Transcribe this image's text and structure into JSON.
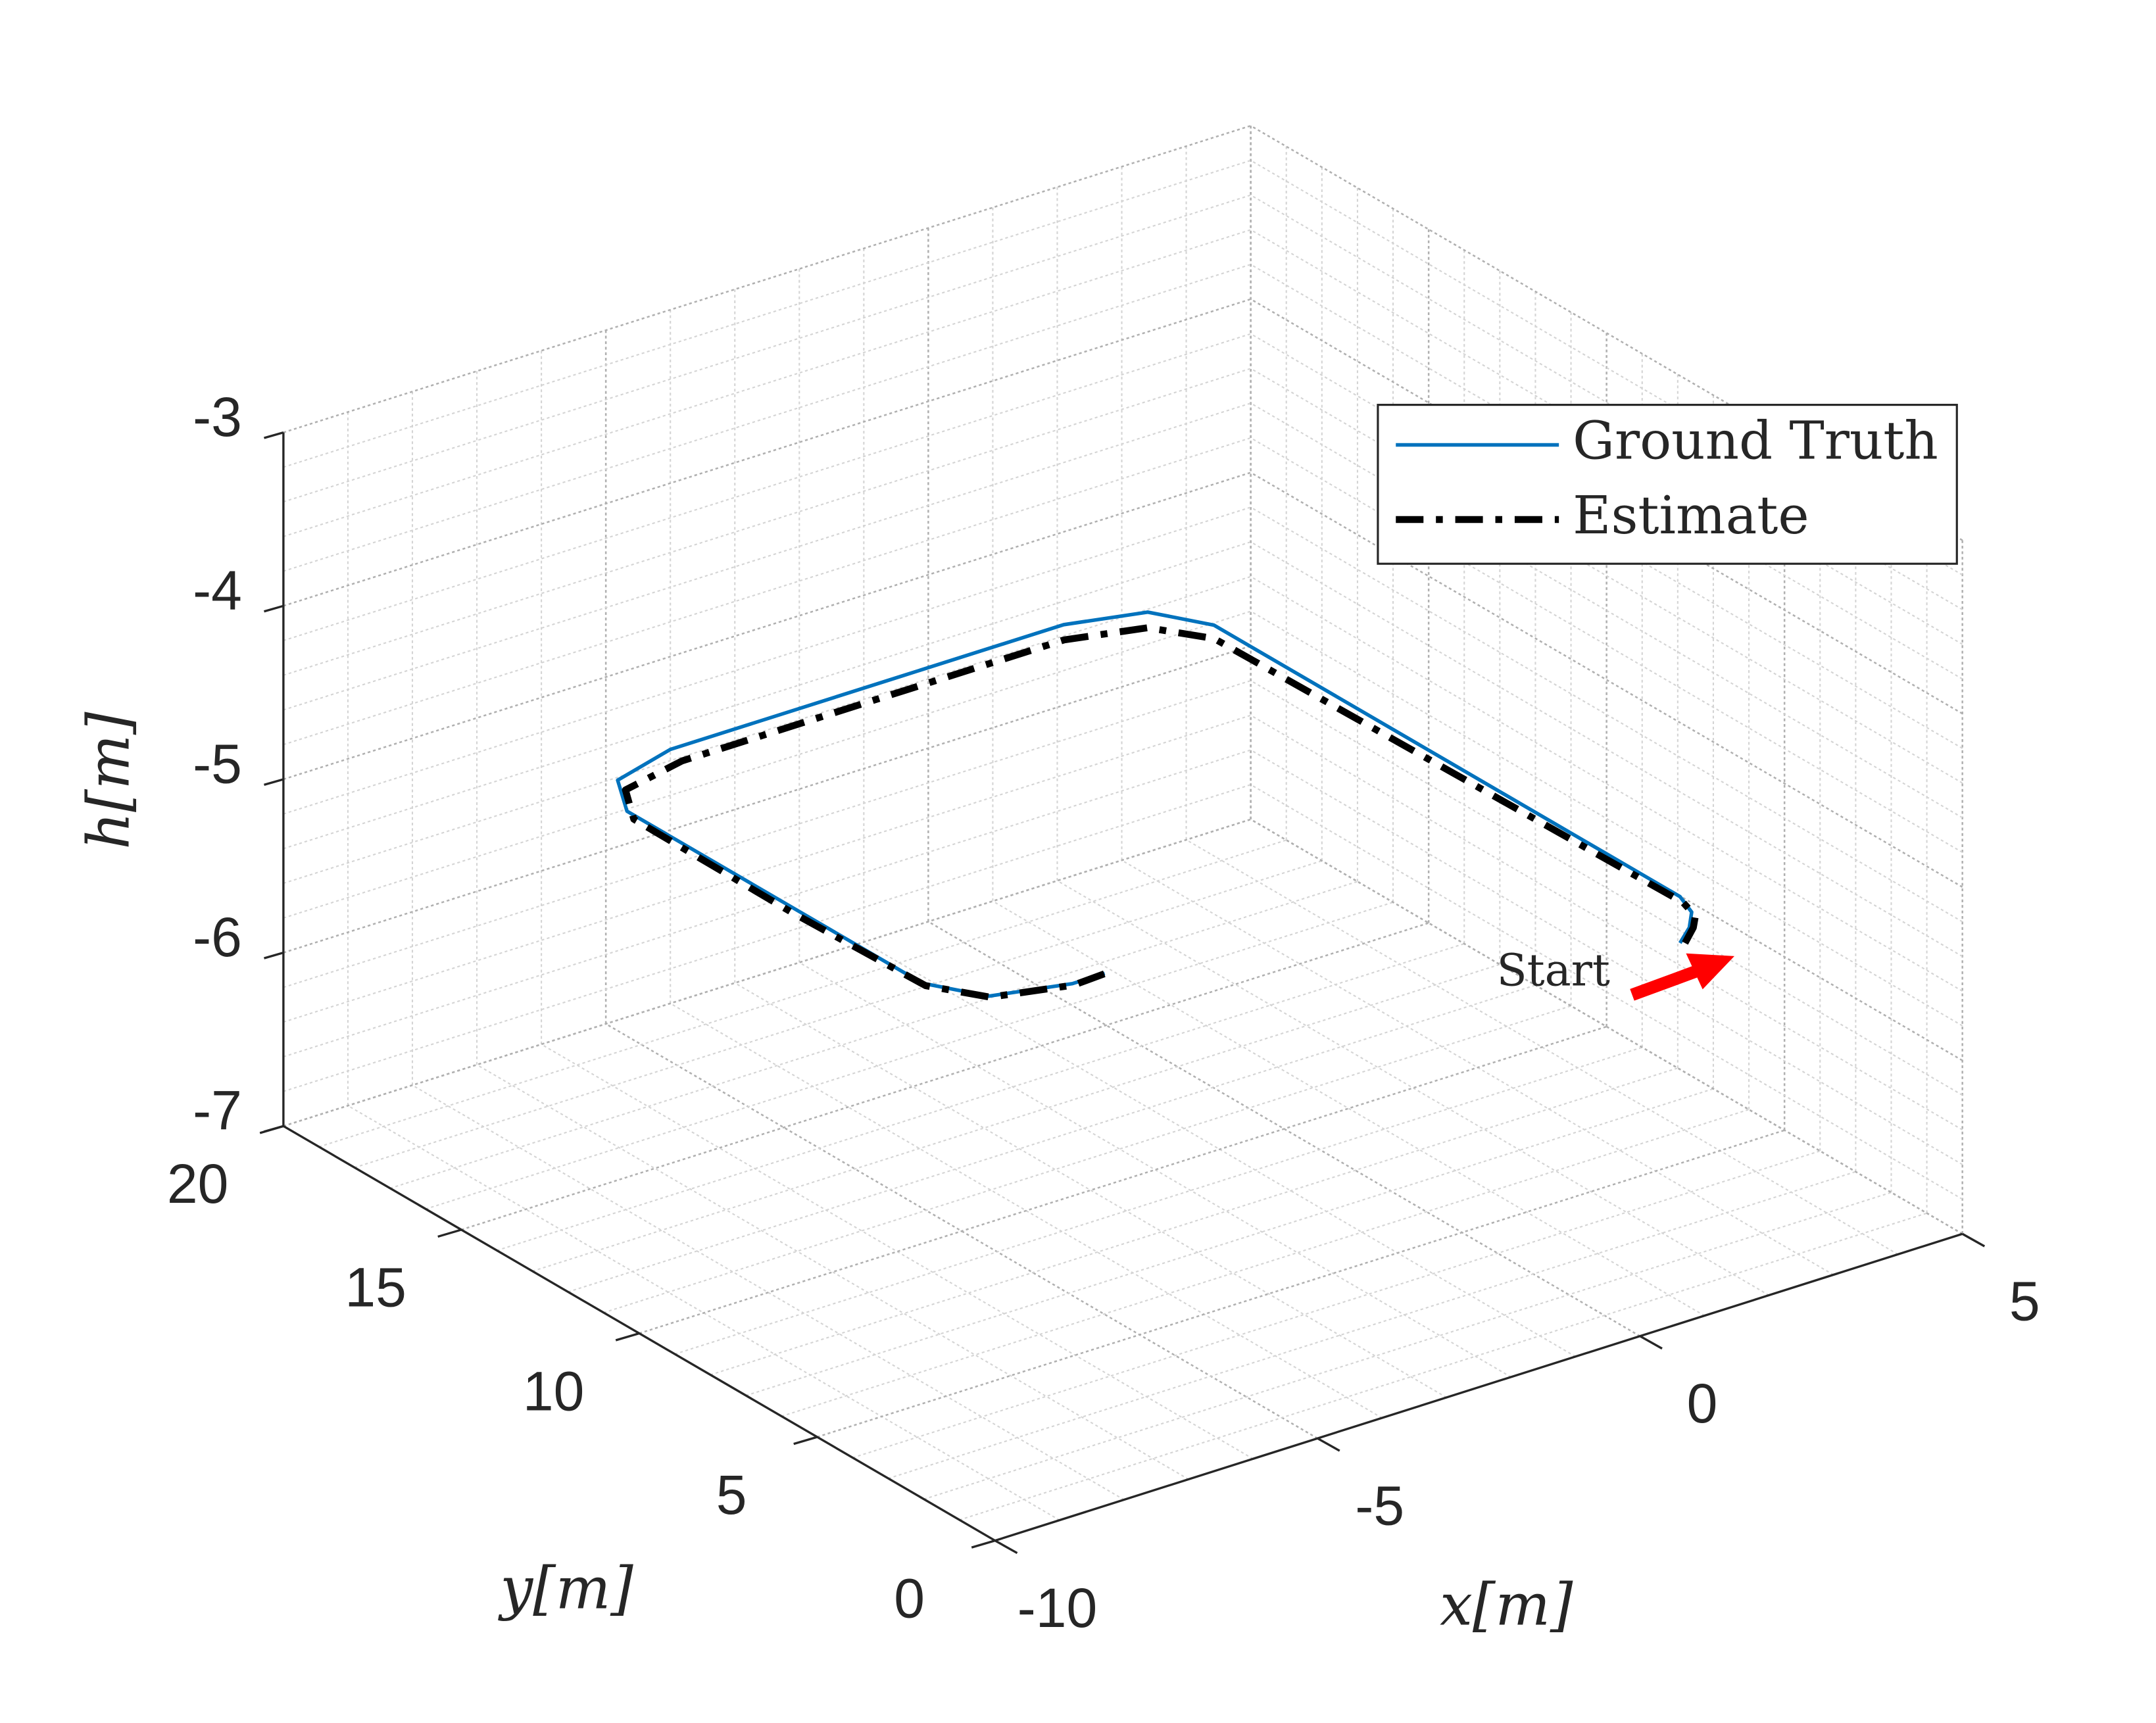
{
  "chart_data": {
    "type": "line3d",
    "xlabel": "x[m]",
    "ylabel": "y[m]",
    "zlabel": "h[m]",
    "xlim": [
      -10,
      5
    ],
    "xticks": [
      -10,
      -5,
      0,
      5
    ],
    "ylim": [
      0,
      20
    ],
    "yticks": [
      0,
      5,
      10,
      15,
      20
    ],
    "zlim": [
      -7,
      -3
    ],
    "zticks": [
      -7,
      -6,
      -5,
      -4,
      -3
    ],
    "grid": true,
    "minor_grid": true,
    "legend": "upper right",
    "annotation": "Start",
    "series": [
      {
        "name": "Ground Truth",
        "color": "#0072bd",
        "line_style": "solid",
        "x": [
          1.2,
          1.56,
          1.85,
          2.0,
          2.0,
          2.0,
          1.56,
          0.5,
          -2.0,
          -5.6,
          -6.66,
          -7.1,
          -7.1,
          -7.1,
          -6.66,
          -5.6,
          -5.1
        ],
        "y": [
          1.05,
          1.44,
          1.9,
          2.5,
          9.0,
          15.6,
          16.66,
          17.1,
          17.1,
          17.1,
          16.66,
          15.6,
          11.0,
          7.3,
          6.24,
          5.8,
          5.8
        ],
        "z": [
          -5.0,
          -5.0,
          -5.0,
          -5.0,
          -5.0,
          -5.0,
          -5.0,
          -5.0,
          -5.0,
          -5.0,
          -5.0,
          -5.0,
          -5.0,
          -5.0,
          -5.0,
          -5.0,
          -5.0
        ]
      },
      {
        "name": "Estimate",
        "color": "#000000",
        "line_style": "dashdot",
        "x": [
          1.25,
          1.6,
          1.88,
          2.02,
          2.0,
          1.95,
          1.5,
          0.45,
          -2.0,
          -5.5,
          -6.6,
          -7.05,
          -7.1,
          -7.05,
          -6.6,
          -5.55,
          -5.05
        ],
        "y": [
          1.0,
          1.4,
          1.85,
          2.45,
          9.0,
          15.5,
          16.55,
          17.0,
          17.0,
          16.95,
          16.55,
          15.5,
          11.0,
          7.3,
          6.3,
          5.85,
          5.9
        ],
        "z": [
          -5.0,
          -5.0,
          -5.02,
          -5.03,
          -5.05,
          -5.06,
          -5.07,
          -5.07,
          -5.07,
          -5.06,
          -5.05,
          -5.04,
          -5.03,
          -5.02,
          -5.02,
          -5.02,
          -5.02
        ]
      }
    ]
  }
}
